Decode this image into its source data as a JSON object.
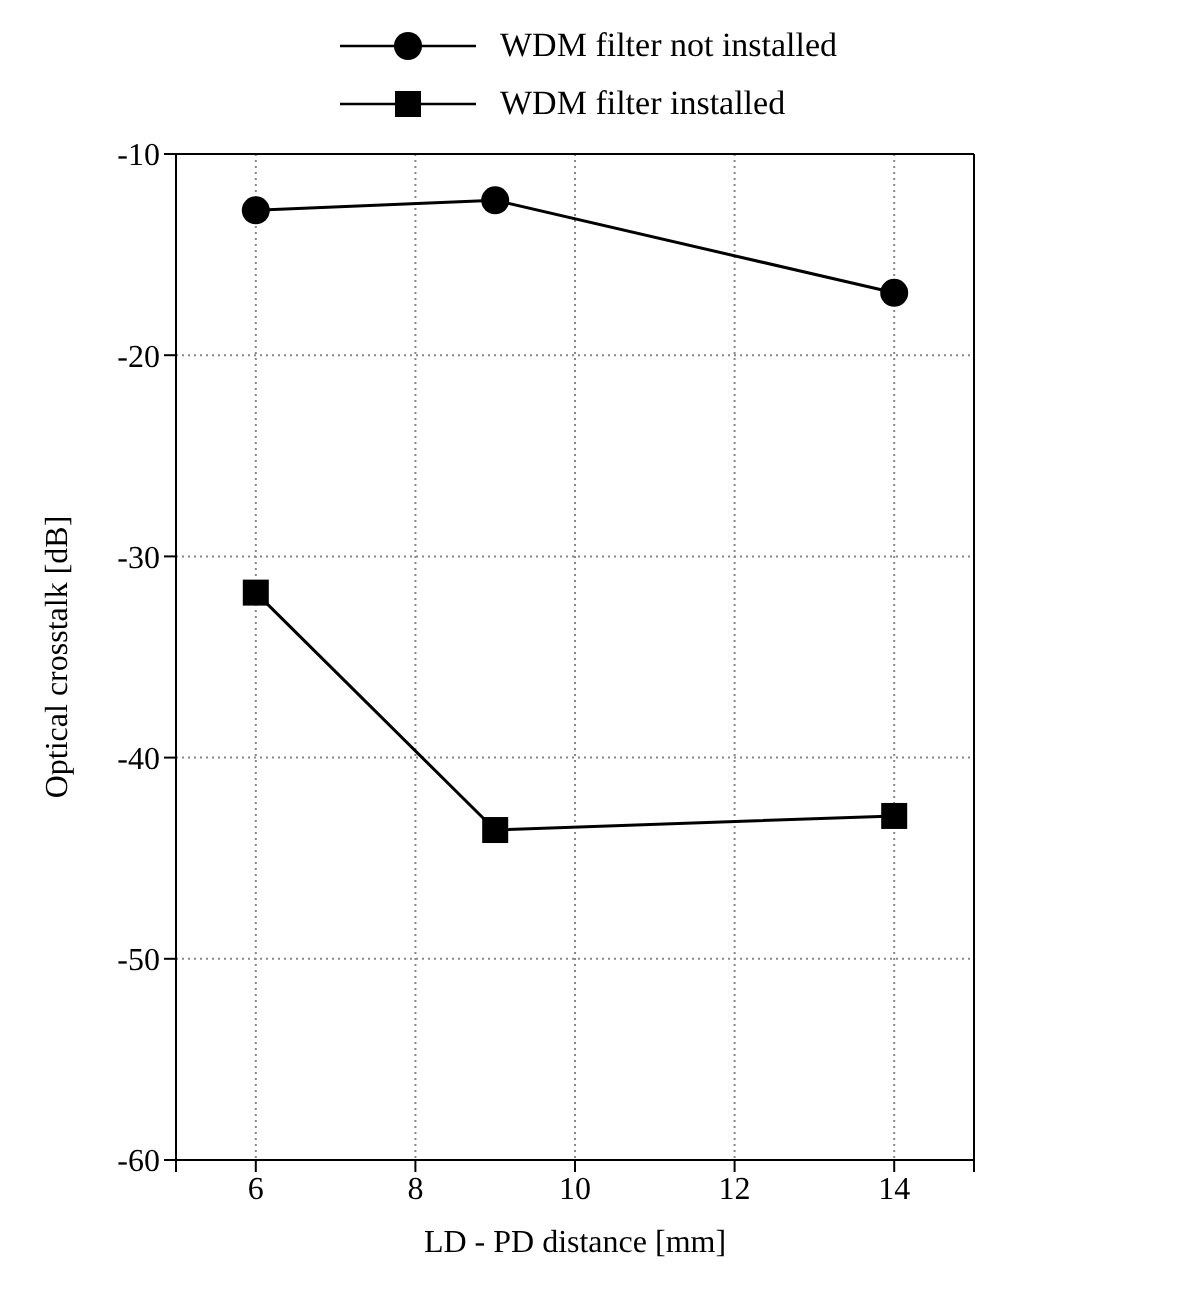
{
  "chart_data": {
    "type": "line",
    "xlabel": "LD - PD distance [mm]",
    "ylabel": "Optical crosstalk [dB]",
    "x": [
      6,
      9,
      14
    ],
    "series": [
      {
        "name": "WDM filter not installed",
        "color": "#000000",
        "marker": "circle",
        "values": [
          -12.8,
          -12.3,
          -16.9
        ]
      },
      {
        "name": "WDM filter installed",
        "color": "#000000",
        "marker": "square",
        "values": [
          -31.8,
          -43.6,
          -42.9
        ]
      }
    ],
    "xlim": [
      5,
      15
    ],
    "xticks": [
      {
        "value": 5,
        "label": null
      },
      6,
      8,
      10,
      12,
      14,
      {
        "value": 15,
        "label": null
      }
    ],
    "ylim": [
      -60,
      -10
    ],
    "yticks": [
      -60,
      -50,
      -40,
      -30,
      -20,
      -10
    ],
    "grid": true,
    "legend": "top",
    "line_style": "solid"
  }
}
